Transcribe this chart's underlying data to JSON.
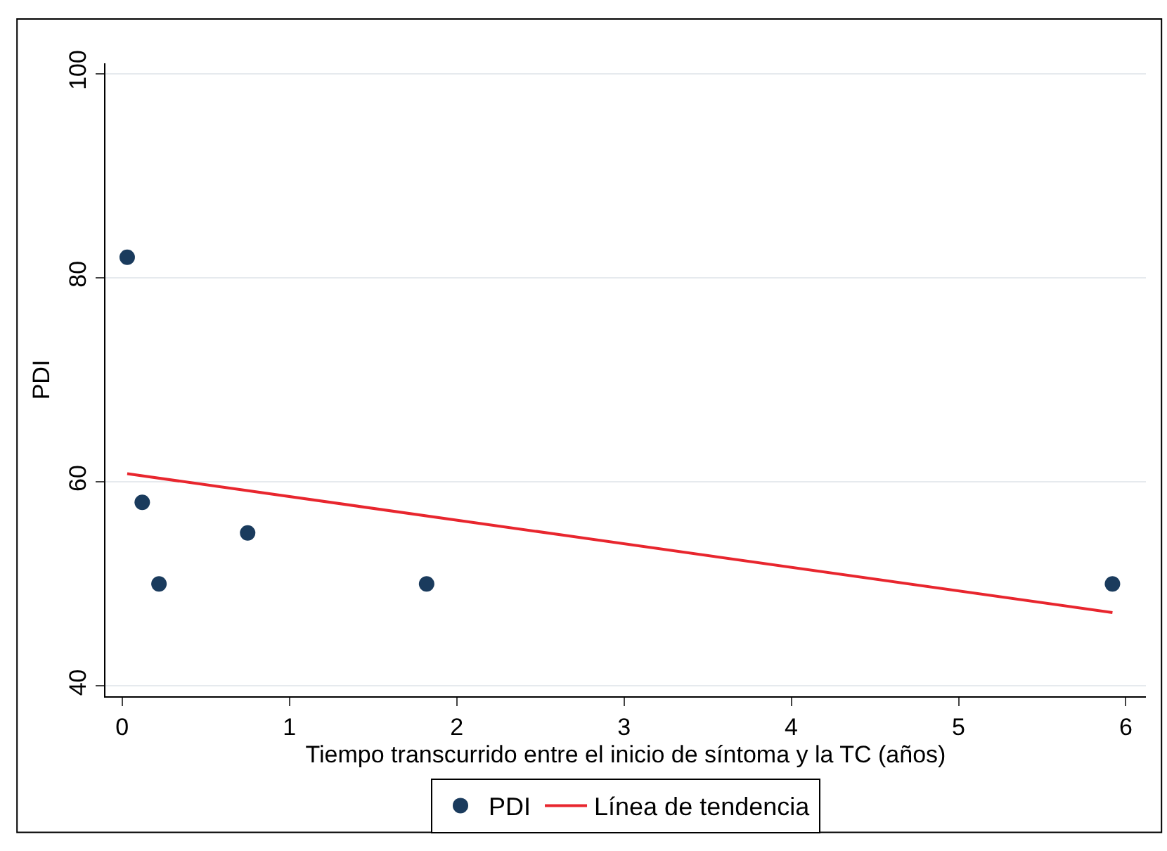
{
  "chart_data": {
    "type": "scatter",
    "xlabel": "Tiempo transcurrido entre el inicio de síntoma y la TC (años)",
    "ylabel": "PDI",
    "series": [
      {
        "name": "PDI",
        "color": "#1a3b5d",
        "x": [
          0.03,
          0.12,
          0.22,
          0.75,
          1.82,
          5.92
        ],
        "values": [
          82,
          58,
          50,
          55,
          50,
          50
        ],
        "marker": "circle"
      },
      {
        "name": "Línea de tendencia",
        "type": "line",
        "color": "#e8262e",
        "x": [
          0.03,
          5.92
        ],
        "values": [
          60.8,
          47.2
        ],
        "line_style": "solid",
        "marker": "none"
      }
    ],
    "xlim": [
      -0.1,
      6.12
    ],
    "xticks": [
      0,
      1,
      2,
      3,
      4,
      5,
      6
    ],
    "ylim": [
      39,
      101
    ],
    "yticks": [
      40,
      60,
      80,
      100
    ],
    "grid": "y",
    "legend": "bottom"
  }
}
